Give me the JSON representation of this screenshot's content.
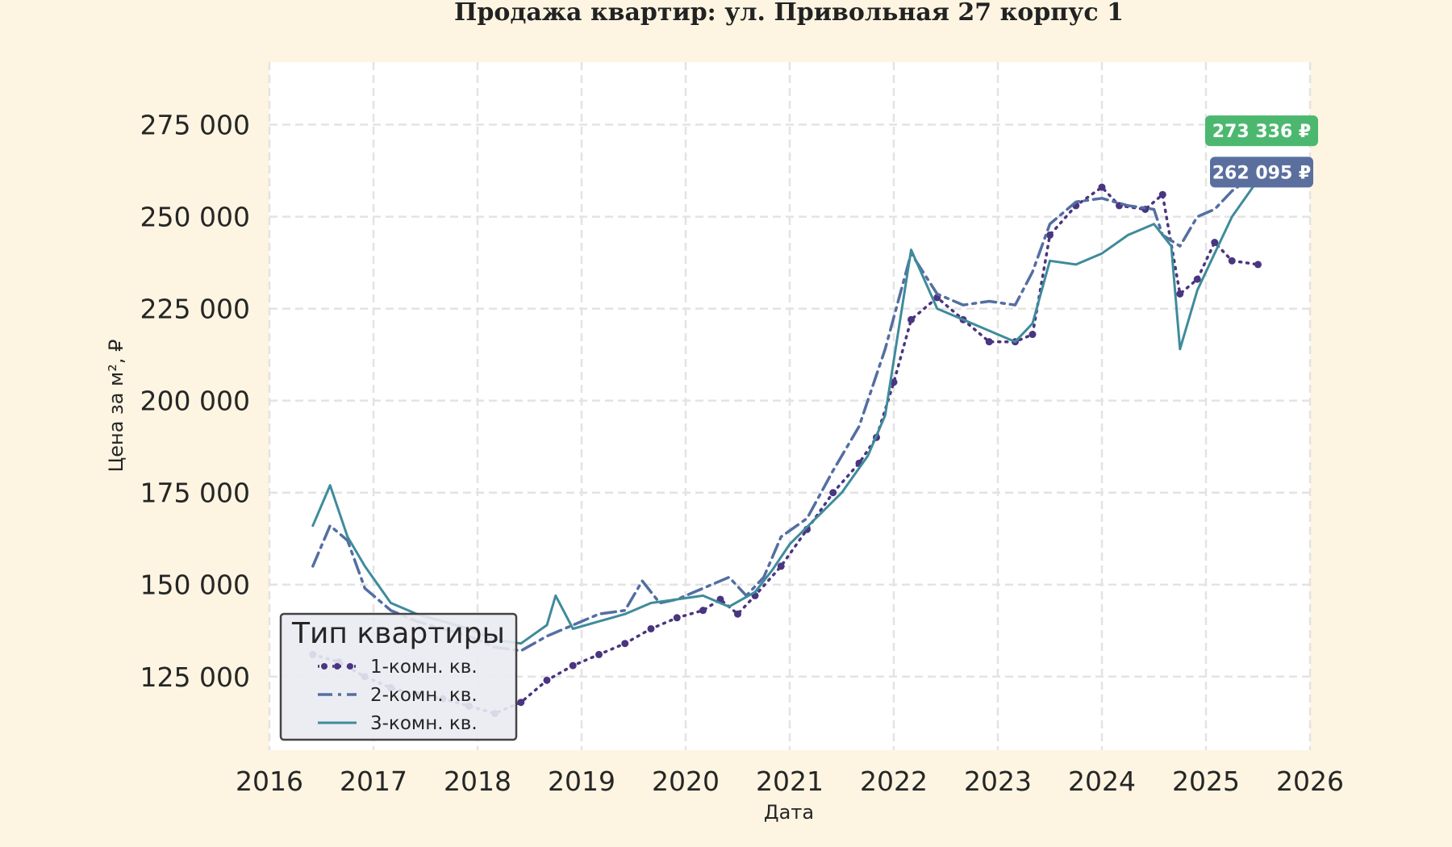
{
  "chart_data": {
    "type": "line",
    "title": "Продажа квартир: ул. Привольная 27 корпус 1",
    "xlabel": "Дата",
    "ylabel": "Цена за м², ₽",
    "xlim": [
      2016.0,
      2026.0
    ],
    "ylim": [
      105000,
      292000
    ],
    "x_ticks": [
      "2016",
      "2017",
      "2018",
      "2019",
      "2020",
      "2021",
      "2022",
      "2023",
      "2024",
      "2025",
      "2026"
    ],
    "y_ticks": [
      "125 000",
      "150 000",
      "175 000",
      "200 000",
      "225 000",
      "250 000",
      "275 000"
    ],
    "grid": true,
    "legend": {
      "title": "Тип квартиры",
      "position": "lower-left"
    },
    "series": [
      {
        "name": "1-комн. кв.",
        "color": "#4a3580",
        "style": "dotted-markers",
        "x": [
          "2016-06",
          "2016-09",
          "2016-12",
          "2017-03",
          "2017-06",
          "2017-09",
          "2017-12",
          "2018-03",
          "2018-06",
          "2018-09",
          "2018-12",
          "2019-03",
          "2019-06",
          "2019-09",
          "2019-12",
          "2020-03",
          "2020-05",
          "2020-07",
          "2020-09",
          "2020-12",
          "2021-03",
          "2021-06",
          "2021-09",
          "2021-11",
          "2022-01",
          "2022-03",
          "2022-06",
          "2022-09",
          "2022-12",
          "2023-03",
          "2023-05",
          "2023-07",
          "2023-10",
          "2024-01",
          "2024-03",
          "2024-06",
          "2024-08",
          "2024-10",
          "2024-12",
          "2025-02",
          "2025-04",
          "2025-07"
        ],
        "values": [
          131000,
          129000,
          125000,
          122000,
          120000,
          119000,
          117000,
          115000,
          118000,
          124000,
          128000,
          131000,
          134000,
          138000,
          141000,
          143000,
          146000,
          142000,
          147000,
          155000,
          165000,
          175000,
          183000,
          190000,
          205000,
          222000,
          228000,
          222000,
          216000,
          216000,
          218000,
          245000,
          253000,
          258000,
          253000,
          252000,
          256000,
          229000,
          233000,
          243000,
          238000,
          237000
        ]
      },
      {
        "name": "2-комн. кв.",
        "color": "#546ea2",
        "style": "dash-dot",
        "x": [
          "2016-06",
          "2016-08",
          "2016-10",
          "2016-12",
          "2017-03",
          "2017-06",
          "2017-09",
          "2017-12",
          "2018-03",
          "2018-06",
          "2018-09",
          "2018-12",
          "2019-03",
          "2019-06",
          "2019-08",
          "2019-10",
          "2019-12",
          "2020-03",
          "2020-06",
          "2020-08",
          "2020-10",
          "2020-12",
          "2021-03",
          "2021-06",
          "2021-09",
          "2021-12",
          "2022-03",
          "2022-06",
          "2022-09",
          "2022-12",
          "2023-03",
          "2023-05",
          "2023-07",
          "2023-10",
          "2024-01",
          "2024-04",
          "2024-07",
          "2024-08",
          "2024-10",
          "2024-12",
          "2025-02",
          "2025-04",
          "2025-07"
        ],
        "values": [
          155000,
          166000,
          162000,
          149000,
          143000,
          140000,
          138000,
          136000,
          133000,
          132000,
          136000,
          139000,
          142000,
          143000,
          151000,
          145000,
          146000,
          149000,
          152000,
          147000,
          152000,
          163000,
          168000,
          181000,
          193000,
          214000,
          240000,
          229000,
          226000,
          227000,
          226000,
          235000,
          248000,
          254000,
          255000,
          253000,
          252000,
          245000,
          242000,
          250000,
          252000,
          257000,
          262000
        ]
      },
      {
        "name": "3-комн. кв.",
        "color": "#3f8b9b",
        "style": "solid",
        "x": [
          "2016-06",
          "2016-08",
          "2016-10",
          "2016-12",
          "2017-03",
          "2017-06",
          "2017-09",
          "2017-12",
          "2018-03",
          "2018-06",
          "2018-09",
          "2018-10",
          "2018-12",
          "2019-03",
          "2019-06",
          "2019-09",
          "2019-12",
          "2020-03",
          "2020-06",
          "2020-09",
          "2020-11",
          "2021-01",
          "2021-04",
          "2021-07",
          "2021-10",
          "2021-12",
          "2022-03",
          "2022-06",
          "2022-09",
          "2022-12",
          "2023-03",
          "2023-05",
          "2023-07",
          "2023-10",
          "2024-01",
          "2024-04",
          "2024-07",
          "2024-09",
          "2024-10",
          "2024-12",
          "2025-02",
          "2025-04",
          "2025-07"
        ],
        "values": [
          166000,
          177000,
          163000,
          155000,
          145000,
          142000,
          140000,
          138000,
          135000,
          134000,
          139000,
          147000,
          138000,
          140000,
          142000,
          145000,
          146000,
          147000,
          144000,
          148000,
          154000,
          161000,
          168000,
          175000,
          185000,
          196000,
          241000,
          225000,
          222000,
          219000,
          216000,
          221000,
          238000,
          237000,
          240000,
          245000,
          248000,
          242000,
          214000,
          230000,
          240000,
          250000,
          260000
        ]
      }
    ],
    "badges": [
      {
        "text": "273 336 ₽",
        "color": "#4cb86f",
        "value": 273336
      },
      {
        "text": "262 095 ₽",
        "color": "#5a6f9e",
        "value": 262095
      }
    ]
  }
}
